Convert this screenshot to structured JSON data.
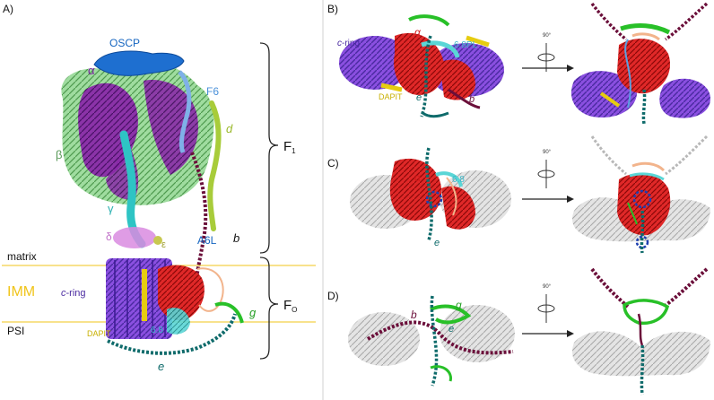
{
  "panels": {
    "A": "A)",
    "B": "B)",
    "C": "C)",
    "D": "D)"
  },
  "panel_a": {
    "labels": {
      "oscp": "OSCP",
      "alpha": "α",
      "f6": "F6",
      "beta": "β",
      "d": "d",
      "gamma": "γ",
      "delta": "δ",
      "epsilon": "ε",
      "a6l": "A6L",
      "b": "b",
      "matrix": "matrix",
      "imm": "IMM",
      "c_ring_c": "c",
      "c_ring_rest": "-ring",
      "psi": "PSI",
      "dapit": "DAPIT",
      "six_eight": "6.8",
      "g": "g",
      "e": "e",
      "f1_main": "F",
      "f1_sub": "1",
      "fo_main": "F",
      "fo_sub": "O"
    }
  },
  "panel_b": {
    "labels": {
      "c_ring_c": "c",
      "c_ring_rest": "-ring",
      "alpha": "α",
      "six_eight_pl": "6.8PL",
      "dapit": "DAPIT",
      "e": "e",
      "b": "b",
      "rotation": "90°"
    }
  },
  "panel_c": {
    "labels": {
      "alpha": "α",
      "six_eight": "6.8",
      "e": "e",
      "rotation": "90°"
    }
  },
  "panel_d": {
    "labels": {
      "b": "b",
      "g": "g",
      "e": "e",
      "rotation": "90°"
    }
  },
  "colors": {
    "alpha": "#7b1fa2",
    "beta": "#8fd18f",
    "oscp": "#1565c0",
    "gamma": "#2ec4c4",
    "delta": "#d98be0",
    "epsilon": "#c8c850",
    "b_subunit": "#6b0f3a",
    "d_subunit": "#a8cc3a",
    "a_subunit": "#d01818",
    "c_ring": "#6a4fd8",
    "dapit": "#e6cc10",
    "e_subunit": "#0f6b6b",
    "g_subunit": "#28c028",
    "membrane": "#f0c419",
    "grey_fold": "#c8c8c8",
    "pl": "#f2b48c"
  }
}
